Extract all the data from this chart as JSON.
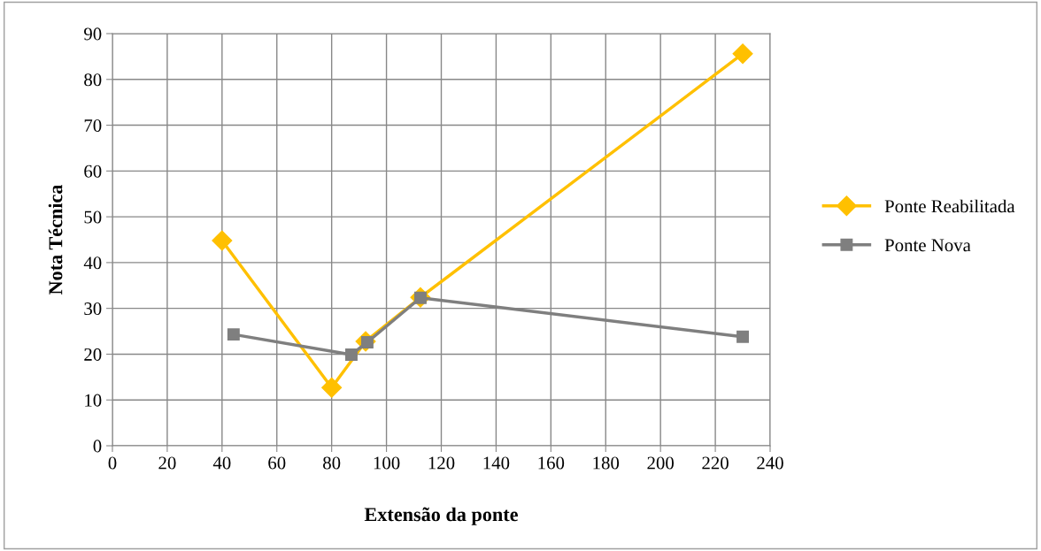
{
  "chart_data": {
    "type": "line",
    "xlabel": "Extensão da ponte",
    "ylabel": "Nota Técnica",
    "xlim": [
      0,
      240
    ],
    "xticks": [
      0,
      20,
      40,
      60,
      80,
      100,
      120,
      140,
      160,
      180,
      200,
      220,
      240
    ],
    "ylim": [
      0,
      90
    ],
    "yticks": [
      0,
      10,
      20,
      30,
      40,
      50,
      60,
      70,
      80,
      90
    ],
    "grid": true,
    "legend": "right",
    "series": [
      {
        "name": "Ponte Reabilitada",
        "color": "#ffc000",
        "marker": "diamond",
        "x": [
          40,
          80,
          92.4,
          112.4,
          230
        ],
        "values": [
          44.8,
          12.7,
          22.8,
          32.4,
          85.6
        ]
      },
      {
        "name": "Ponte Nova",
        "color": "#7f7f7f",
        "marker": "square",
        "x": [
          44.2,
          87.2,
          93,
          112.4,
          230
        ],
        "values": [
          24.3,
          19.9,
          22.6,
          32.3,
          23.8
        ]
      }
    ]
  }
}
